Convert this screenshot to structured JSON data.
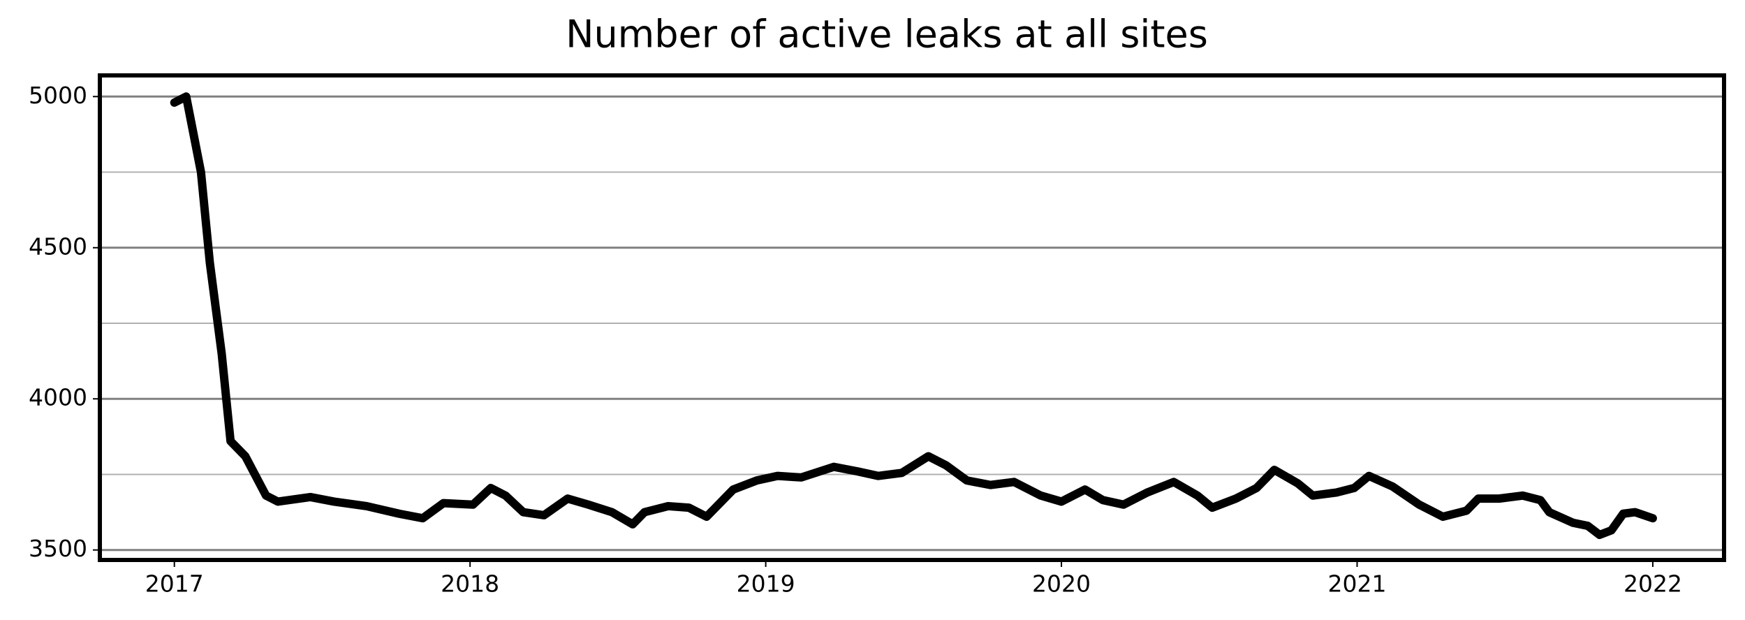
{
  "chart_data": {
    "type": "line",
    "title": "Number of active leaks at all sites",
    "x": [
      2017.0,
      2017.04,
      2017.09,
      2017.12,
      2017.16,
      2017.19,
      2017.24,
      2017.31,
      2017.35,
      2017.46,
      2017.54,
      2017.65,
      2017.76,
      2017.84,
      2017.91,
      2018.01,
      2018.07,
      2018.12,
      2018.18,
      2018.25,
      2018.33,
      2018.4,
      2018.48,
      2018.55,
      2018.59,
      2018.67,
      2018.74,
      2018.8,
      2018.89,
      2018.97,
      2019.04,
      2019.12,
      2019.23,
      2019.31,
      2019.38,
      2019.46,
      2019.55,
      2019.61,
      2019.68,
      2019.76,
      2019.84,
      2019.93,
      2020.0,
      2020.08,
      2020.14,
      2020.21,
      2020.29,
      2020.38,
      2020.46,
      2020.51,
      2020.59,
      2020.66,
      2020.72,
      2020.8,
      2020.85,
      2020.93,
      2020.99,
      2021.04,
      2021.12,
      2021.21,
      2021.29,
      2021.37,
      2021.41,
      2021.48,
      2021.56,
      2021.62,
      2021.65,
      2021.73,
      2021.78,
      2021.82,
      2021.86,
      2021.9,
      2021.94,
      2022.0
    ],
    "series": [
      {
        "color": "#000000",
        "values": [
          4980,
          5000,
          4750,
          4450,
          4150,
          3860,
          3810,
          3680,
          3660,
          3675,
          3660,
          3645,
          3620,
          3605,
          3655,
          3650,
          3705,
          3680,
          3625,
          3615,
          3670,
          3650,
          3625,
          3585,
          3625,
          3645,
          3640,
          3610,
          3700,
          3730,
          3745,
          3740,
          3775,
          3760,
          3745,
          3755,
          3810,
          3780,
          3730,
          3715,
          3725,
          3680,
          3660,
          3700,
          3665,
          3650,
          3690,
          3725,
          3680,
          3640,
          3670,
          3705,
          3765,
          3720,
          3680,
          3690,
          3705,
          3745,
          3710,
          3650,
          3610,
          3630,
          3670,
          3670,
          3680,
          3665,
          3625,
          3590,
          3580,
          3550,
          3565,
          3620,
          3625,
          3605
        ]
      }
    ],
    "xlim": [
      2016.748,
      2022.241
    ],
    "xticks": [
      2017,
      2018,
      2019,
      2020,
      2021,
      2022
    ],
    "ylim": [
      3467,
      5070
    ],
    "yticks": [
      3500,
      4000,
      4500,
      5000
    ],
    "y_minor_ticks": [
      3750,
      4250,
      4750
    ],
    "grid": true
  }
}
